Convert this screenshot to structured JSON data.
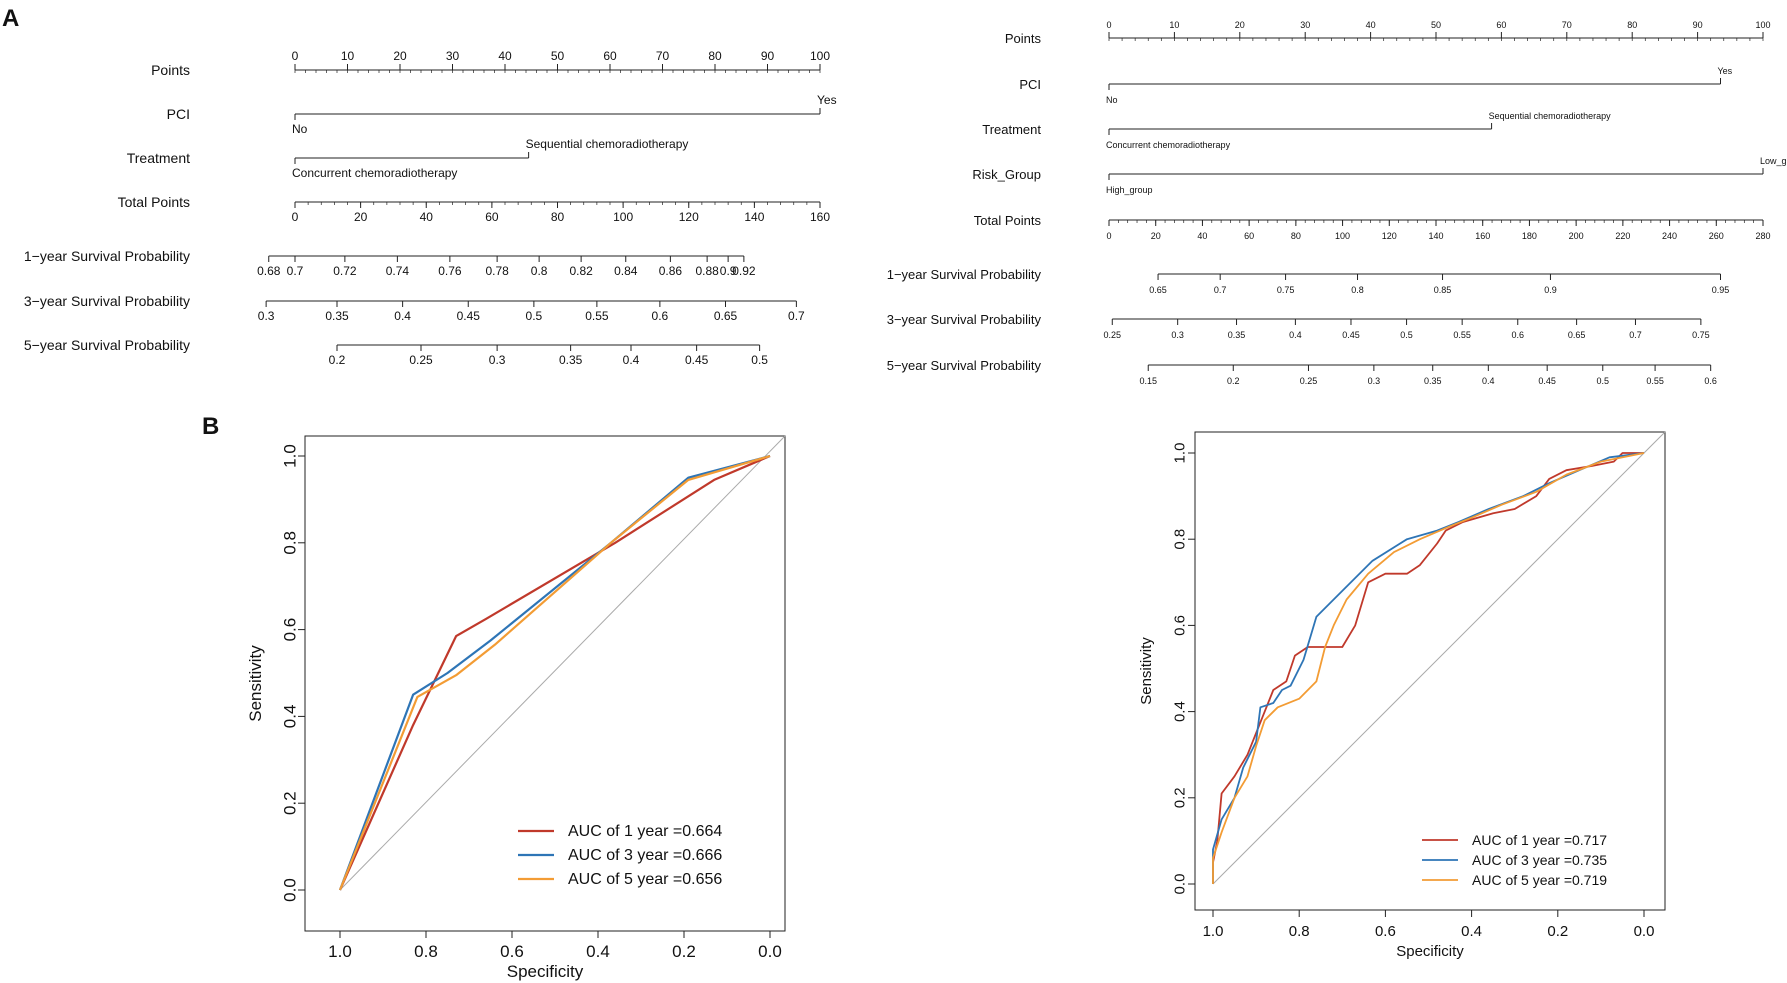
{
  "panels": {
    "a": "A",
    "b": "B"
  },
  "chart_data": [
    {
      "type": "nomogram",
      "id": "nomo_left",
      "rows": [
        {
          "label": "Points",
          "kind": "axis",
          "min": 0,
          "max": 100,
          "major": [
            0,
            10,
            20,
            30,
            40,
            50,
            60,
            70,
            80,
            90,
            100
          ],
          "minor_step": 2
        },
        {
          "label": "PCI",
          "kind": "variable",
          "levels": [
            {
              "name": "No",
              "points": 0
            },
            {
              "name": "Yes",
              "points": 100
            }
          ]
        },
        {
          "label": "Treatment",
          "kind": "variable",
          "levels": [
            {
              "name": "Concurrent chemoradiotherapy",
              "points": 0
            },
            {
              "name": "Sequential chemoradiotherapy",
              "points": 44.5
            }
          ]
        },
        {
          "label": "Total Points",
          "kind": "axis",
          "min": 0,
          "max": 160,
          "major": [
            0,
            20,
            40,
            60,
            80,
            100,
            120,
            140,
            160
          ],
          "minor_step": 4
        },
        {
          "label": "1−year Survival Probability",
          "kind": "prob",
          "line": [
            -5,
            85.5
          ],
          "ticks": [
            {
              "v": "0.68",
              "p": -5
            },
            {
              "v": "0.7",
              "p": 0
            },
            {
              "v": "0.72",
              "p": 9.5
            },
            {
              "v": "0.74",
              "p": 19.5
            },
            {
              "v": "0.76",
              "p": 29.5
            },
            {
              "v": "0.78",
              "p": 38.5
            },
            {
              "v": "0.8",
              "p": 46.5
            },
            {
              "v": "0.82",
              "p": 54.5
            },
            {
              "v": "0.84",
              "p": 63
            },
            {
              "v": "0.86",
              "p": 71.5
            },
            {
              "v": "0.88",
              "p": 78.5
            },
            {
              "v": "0.9",
              "p": 82.5
            },
            {
              "v": "0.92",
              "p": 85.5
            }
          ]
        },
        {
          "label": "3−year Survival Probability",
          "kind": "prob",
          "line": [
            -5.5,
            95.5
          ],
          "ticks": [
            {
              "v": "0.3",
              "p": -5.5
            },
            {
              "v": "0.35",
              "p": 8
            },
            {
              "v": "0.4",
              "p": 20.5
            },
            {
              "v": "0.45",
              "p": 33
            },
            {
              "v": "0.5",
              "p": 45.5
            },
            {
              "v": "0.55",
              "p": 57.5
            },
            {
              "v": "0.6",
              "p": 69.5
            },
            {
              "v": "0.65",
              "p": 82
            },
            {
              "v": "0.7",
              "p": 95.5
            }
          ]
        },
        {
          "label": "5−year Survival Probability",
          "kind": "prob",
          "line": [
            8,
            88.5
          ],
          "ticks": [
            {
              "v": "0.2",
              "p": 8
            },
            {
              "v": "0.25",
              "p": 24
            },
            {
              "v": "0.3",
              "p": 38.5
            },
            {
              "v": "0.35",
              "p": 52.5
            },
            {
              "v": "0.4",
              "p": 64
            },
            {
              "v": "0.45",
              "p": 76.5
            },
            {
              "v": "0.5",
              "p": 88.5
            }
          ]
        }
      ]
    },
    {
      "type": "nomogram",
      "id": "nomo_right",
      "rows": [
        {
          "label": "Points",
          "kind": "axis",
          "min": 0,
          "max": 100,
          "major": [
            0,
            10,
            20,
            30,
            40,
            50,
            60,
            70,
            80,
            90,
            100
          ],
          "minor_step": 2
        },
        {
          "label": "PCI",
          "kind": "variable",
          "levels": [
            {
              "name": "No",
              "points": 0
            },
            {
              "name": "Yes",
              "points": 93.5
            }
          ]
        },
        {
          "label": "Treatment",
          "kind": "variable",
          "levels": [
            {
              "name": "Concurrent chemoradiotherapy",
              "points": 0
            },
            {
              "name": "Sequential chemoradiotherapy",
              "points": 58.5
            }
          ]
        },
        {
          "label": "Risk_Group",
          "kind": "variable",
          "levels": [
            {
              "name": "High_group",
              "points": 0
            },
            {
              "name": "Low_group",
              "points": 100
            }
          ]
        },
        {
          "label": "Total Points",
          "kind": "axis",
          "min": 0,
          "max": 280,
          "major": [
            0,
            20,
            40,
            60,
            80,
            100,
            120,
            140,
            160,
            180,
            200,
            220,
            240,
            260,
            280
          ],
          "minor_step": 4
        },
        {
          "label": "1−year Survival Probability",
          "kind": "prob",
          "line": [
            7.5,
            93.5
          ],
          "ticks": [
            {
              "v": "0.65",
              "p": 7.5
            },
            {
              "v": "0.7",
              "p": 17
            },
            {
              "v": "0.75",
              "p": 27
            },
            {
              "v": "0.8",
              "p": 38
            },
            {
              "v": "0.85",
              "p": 51
            },
            {
              "v": "0.9",
              "p": 67.5
            },
            {
              "v": "0.95",
              "p": 93.5
            }
          ]
        },
        {
          "label": "3−year Survival Probability",
          "kind": "prob",
          "line": [
            0.5,
            90.5
          ],
          "ticks": [
            {
              "v": "0.25",
              "p": 0.5
            },
            {
              "v": "0.3",
              "p": 10.5
            },
            {
              "v": "0.35",
              "p": 19.5
            },
            {
              "v": "0.4",
              "p": 28.5
            },
            {
              "v": "0.45",
              "p": 37
            },
            {
              "v": "0.5",
              "p": 45.5
            },
            {
              "v": "0.55",
              "p": 54
            },
            {
              "v": "0.6",
              "p": 62.5
            },
            {
              "v": "0.65",
              "p": 71.5
            },
            {
              "v": "0.7",
              "p": 80.5
            },
            {
              "v": "0.75",
              "p": 90.5
            }
          ]
        },
        {
          "label": "5−year Survival Probability",
          "kind": "prob",
          "line": [
            6,
            92
          ],
          "ticks": [
            {
              "v": "0.15",
              "p": 6
            },
            {
              "v": "0.2",
              "p": 19
            },
            {
              "v": "0.25",
              "p": 30.5
            },
            {
              "v": "0.3",
              "p": 40.5
            },
            {
              "v": "0.35",
              "p": 49.5
            },
            {
              "v": "0.4",
              "p": 58
            },
            {
              "v": "0.45",
              "p": 67
            },
            {
              "v": "0.5",
              "p": 75.5
            },
            {
              "v": "0.55",
              "p": 83.5
            },
            {
              "v": "0.6",
              "p": 92
            }
          ]
        }
      ]
    },
    {
      "type": "line",
      "id": "roc_left",
      "xlabel": "Specificity",
      "ylabel": "Sensitivity",
      "xlim": [
        1.0,
        0.0
      ],
      "ylim": [
        0.0,
        1.0
      ],
      "xticks": [
        "1.0",
        "0.8",
        "0.6",
        "0.4",
        "0.2",
        "0.0"
      ],
      "yticks": [
        "0.0",
        "0.2",
        "0.4",
        "0.6",
        "0.8",
        "1.0"
      ],
      "series": [
        {
          "name": "AUC of 1 year =0.664",
          "color": "#c0392b",
          "points": [
            [
              1.0,
              0.0
            ],
            [
              0.83,
              0.38
            ],
            [
              0.73,
              0.585
            ],
            [
              0.66,
              0.625
            ],
            [
              0.36,
              0.8
            ],
            [
              0.13,
              0.945
            ],
            [
              0.0,
              1.0
            ]
          ]
        },
        {
          "name": "AUC of 3 year =0.666",
          "color": "#2e75b6",
          "points": [
            [
              1.0,
              0.0
            ],
            [
              0.83,
              0.45
            ],
            [
              0.75,
              0.5
            ],
            [
              0.65,
              0.575
            ],
            [
              0.37,
              0.8
            ],
            [
              0.19,
              0.95
            ],
            [
              0.0,
              1.0
            ]
          ]
        },
        {
          "name": "AUC of 5 year =0.656",
          "color": "#f39c34",
          "points": [
            [
              1.0,
              0.0
            ],
            [
              0.82,
              0.445
            ],
            [
              0.73,
              0.495
            ],
            [
              0.64,
              0.565
            ],
            [
              0.37,
              0.8
            ],
            [
              0.19,
              0.945
            ],
            [
              0.0,
              1.0
            ]
          ]
        }
      ]
    },
    {
      "type": "line",
      "id": "roc_right",
      "xlabel": "Specificity",
      "ylabel": "Sensitivity",
      "xlim": [
        1.0,
        0.0
      ],
      "ylim": [
        0.0,
        1.0
      ],
      "xticks": [
        "1.0",
        "0.8",
        "0.6",
        "0.4",
        "0.2",
        "0.0"
      ],
      "yticks": [
        "0.0",
        "0.2",
        "0.4",
        "0.6",
        "0.8",
        "1.0"
      ],
      "series": [
        {
          "name": "AUC of 1 year =0.717",
          "color": "#c0392b",
          "points": [
            [
              1.0,
              0.0
            ],
            [
              1.0,
              0.05
            ],
            [
              0.99,
              0.1
            ],
            [
              0.98,
              0.21
            ],
            [
              0.95,
              0.25
            ],
            [
              0.92,
              0.3
            ],
            [
              0.9,
              0.35
            ],
            [
              0.88,
              0.4
            ],
            [
              0.86,
              0.45
            ],
            [
              0.83,
              0.47
            ],
            [
              0.81,
              0.53
            ],
            [
              0.78,
              0.55
            ],
            [
              0.75,
              0.55
            ],
            [
              0.7,
              0.55
            ],
            [
              0.67,
              0.6
            ],
            [
              0.64,
              0.7
            ],
            [
              0.6,
              0.72
            ],
            [
              0.55,
              0.72
            ],
            [
              0.52,
              0.74
            ],
            [
              0.48,
              0.79
            ],
            [
              0.46,
              0.82
            ],
            [
              0.42,
              0.84
            ],
            [
              0.35,
              0.86
            ],
            [
              0.3,
              0.87
            ],
            [
              0.25,
              0.9
            ],
            [
              0.22,
              0.94
            ],
            [
              0.18,
              0.96
            ],
            [
              0.12,
              0.97
            ],
            [
              0.07,
              0.98
            ],
            [
              0.05,
              1.0
            ],
            [
              0.0,
              1.0
            ]
          ]
        },
        {
          "name": "AUC of 3 year =0.735",
          "color": "#2e75b6",
          "points": [
            [
              1.0,
              0.0
            ],
            [
              1.0,
              0.08
            ],
            [
              0.98,
              0.15
            ],
            [
              0.95,
              0.2
            ],
            [
              0.93,
              0.27
            ],
            [
              0.9,
              0.33
            ],
            [
              0.89,
              0.41
            ],
            [
              0.86,
              0.42
            ],
            [
              0.84,
              0.45
            ],
            [
              0.82,
              0.46
            ],
            [
              0.79,
              0.52
            ],
            [
              0.76,
              0.62
            ],
            [
              0.73,
              0.65
            ],
            [
              0.7,
              0.68
            ],
            [
              0.63,
              0.75
            ],
            [
              0.55,
              0.8
            ],
            [
              0.48,
              0.82
            ],
            [
              0.43,
              0.84
            ],
            [
              0.36,
              0.87
            ],
            [
              0.28,
              0.9
            ],
            [
              0.22,
              0.93
            ],
            [
              0.15,
              0.96
            ],
            [
              0.08,
              0.99
            ],
            [
              0.0,
              1.0
            ]
          ]
        },
        {
          "name": "AUC of 5 year =0.719",
          "color": "#f39c34",
          "points": [
            [
              1.0,
              0.0
            ],
            [
              1.0,
              0.06
            ],
            [
              0.98,
              0.12
            ],
            [
              0.95,
              0.2
            ],
            [
              0.92,
              0.25
            ],
            [
              0.9,
              0.32
            ],
            [
              0.88,
              0.38
            ],
            [
              0.85,
              0.41
            ],
            [
              0.8,
              0.43
            ],
            [
              0.76,
              0.47
            ],
            [
              0.74,
              0.55
            ],
            [
              0.72,
              0.6
            ],
            [
              0.69,
              0.66
            ],
            [
              0.64,
              0.72
            ],
            [
              0.58,
              0.77
            ],
            [
              0.52,
              0.8
            ],
            [
              0.45,
              0.83
            ],
            [
              0.4,
              0.85
            ],
            [
              0.33,
              0.88
            ],
            [
              0.25,
              0.91
            ],
            [
              0.18,
              0.95
            ],
            [
              0.1,
              0.98
            ],
            [
              0.0,
              1.0
            ]
          ]
        }
      ]
    }
  ]
}
